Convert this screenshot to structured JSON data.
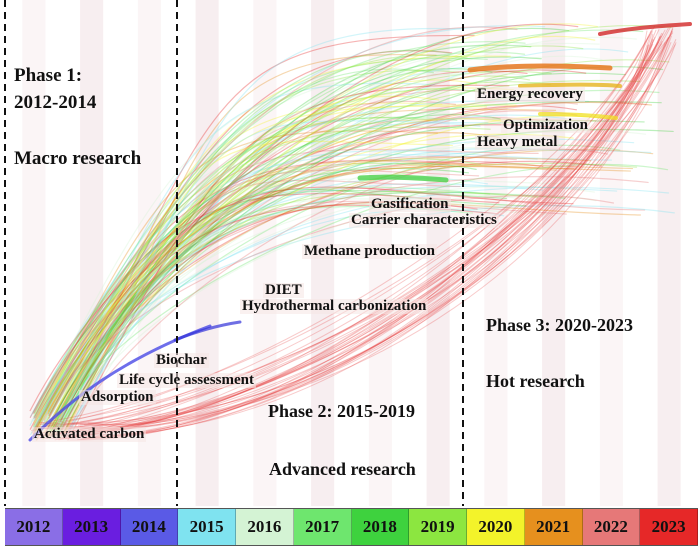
{
  "phases": {
    "phase1_title": "Phase 1:",
    "phase1_years": "2012-2014",
    "phase1_desc": "Macro research",
    "phase2_title": "Phase 2: 2015-2019",
    "phase2_desc": "Advanced research",
    "phase3_title": "Phase 3: 2020-2023",
    "phase3_desc": "Hot research"
  },
  "keywords": {
    "energy_recovery": "Energy recovery",
    "optimization": "Optimization",
    "heavy_metal": "Heavy metal",
    "gasification": "Gasification",
    "carrier_characteristics": "Carrier characteristics",
    "methane_production": "Methane production",
    "diet": "DIET",
    "hydrothermal_carbonization": "Hydrothermal carbonization",
    "biochar": "Biochar",
    "life_cycle_assessment": "Life cycle assessment",
    "adsorption": "Adsorption",
    "activated_carbon": "Activated carbon"
  },
  "years": [
    {
      "label": "2012",
      "color": "#8a6ee6"
    },
    {
      "label": "2013",
      "color": "#6a1ee0"
    },
    {
      "label": "2014",
      "color": "#5a5ae6"
    },
    {
      "label": "2015",
      "color": "#7fe3f0"
    },
    {
      "label": "2016",
      "color": "#d4f3d4"
    },
    {
      "label": "2017",
      "color": "#6ee66e"
    },
    {
      "label": "2018",
      "color": "#3ed23e"
    },
    {
      "label": "2019",
      "color": "#8ce640"
    },
    {
      "label": "2020",
      "color": "#f3f32a"
    },
    {
      "label": "2021",
      "color": "#e6901e"
    },
    {
      "label": "2022",
      "color": "#e67878"
    },
    {
      "label": "2023",
      "color": "#e62828"
    }
  ]
}
